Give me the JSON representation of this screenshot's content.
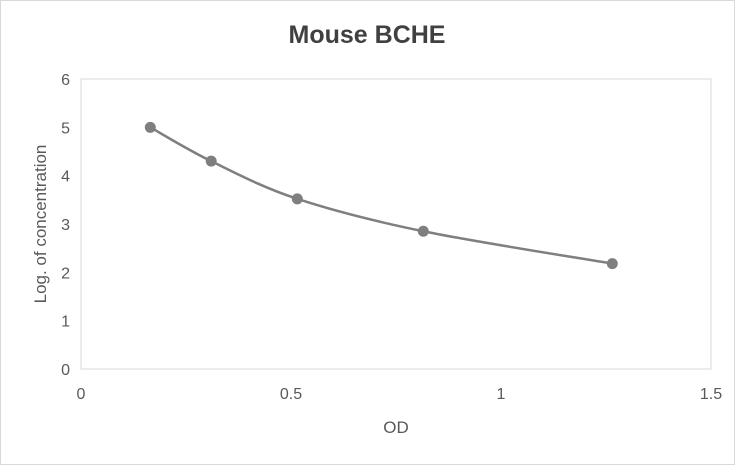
{
  "chart_data": {
    "type": "scatter",
    "title": "Mouse BCHE",
    "xlabel": "OD",
    "ylabel": "Log. of concentration",
    "xlim": [
      0,
      1.5
    ],
    "ylim": [
      0,
      6
    ],
    "x_ticks": [
      0,
      0.5,
      1,
      1.5
    ],
    "x_tick_labels": [
      "0",
      "0.5",
      "1",
      "1.5"
    ],
    "y_ticks": [
      0,
      1,
      2,
      3,
      4,
      5,
      6
    ],
    "y_tick_labels": [
      "0",
      "1",
      "2",
      "3",
      "4",
      "5",
      "6"
    ],
    "grid": false,
    "legend": "none",
    "smooth_line": true,
    "series": [
      {
        "color": "#7f7f7f",
        "x": [
          0.165,
          0.31,
          0.515,
          0.815,
          1.265
        ],
        "y": [
          5.0,
          4.3,
          3.52,
          2.85,
          2.18
        ]
      }
    ]
  }
}
